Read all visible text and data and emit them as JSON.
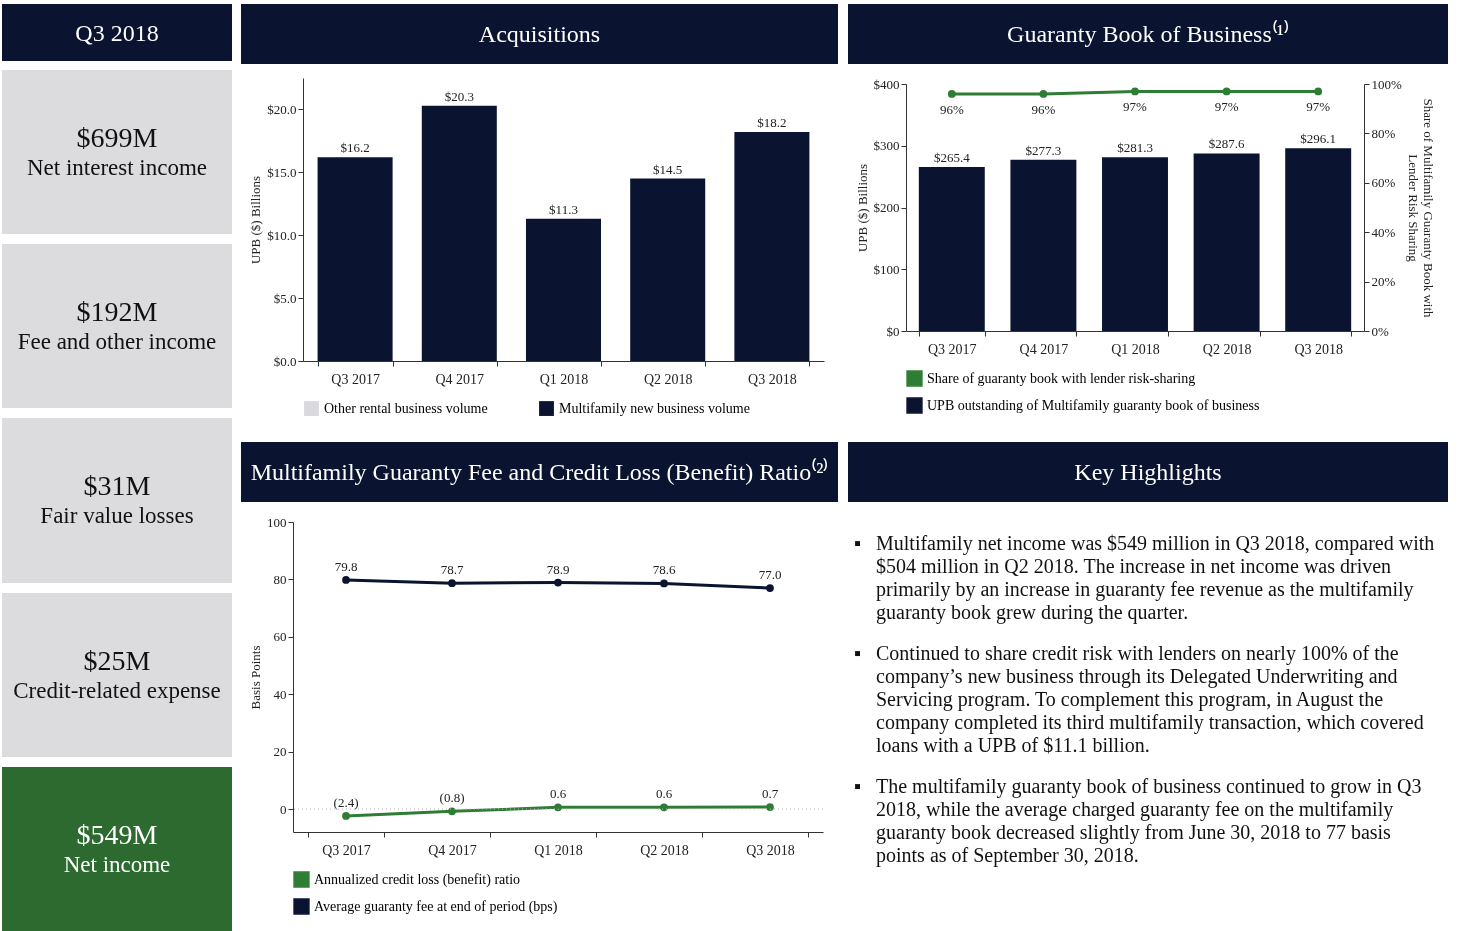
{
  "chart_data": [
    {
      "type": "other",
      "title": "Q3 2018",
      "annotations": [
        "$699M",
        "Net interest income",
        "$192M",
        "Fee and other income",
        "$31M",
        "Fair value losses",
        "$25M",
        "Credit-related expense",
        "$549M",
        "Net income"
      ],
      "colors": [
        "#dcdcdf",
        "#dcdcdf",
        "#dcdcdf",
        "#dcdcdf",
        "#2d6a2f"
      ]
    },
    {
      "type": "bar",
      "title": "Acquisitions",
      "ylabel": "UPB ($) Billions",
      "categories": [
        "Q3 2017",
        "Q4 2017",
        "Q1 2018",
        "Q2 2018",
        "Q3 2018"
      ],
      "legend": "bottom",
      "ylim": [
        0,
        22.5
      ],
      "yticks": [
        {
          "value": 0,
          "label": "$0.0"
        },
        {
          "value": 5,
          "label": "$5.0"
        },
        {
          "value": 10,
          "label": "$10.0"
        },
        {
          "value": 15,
          "label": "$15.0"
        },
        {
          "value": 20,
          "label": "$20.0"
        }
      ],
      "series": [
        {
          "name": "Other rental business volume",
          "color": "#d9d9de",
          "values": [
            null,
            null,
            null,
            null,
            null
          ]
        },
        {
          "name": "Multifamily new business volume",
          "color": "#0a1430",
          "values": [
            16.2,
            20.3,
            11.3,
            14.5,
            18.2
          ],
          "value_labels": [
            "$16.2",
            "$20.3",
            "$11.3",
            "$14.5",
            "$18.2"
          ]
        }
      ]
    },
    {
      "type": "bar",
      "title": "Guaranty Book of Business⁽¹⁾",
      "ylabel": "UPB ($) Billions",
      "y2label": "Share of Multifamily Guaranty Book with Lender Risk Sharing",
      "categories": [
        "Q3 2017",
        "Q4 2017",
        "Q1 2018",
        "Q2 2018",
        "Q3 2018"
      ],
      "legend": "bottom left",
      "marker": "circle",
      "ylim": [
        0,
        400
      ],
      "yticks": [
        {
          "value": 0,
          "label": "$0"
        },
        {
          "value": 100,
          "label": "$100"
        },
        {
          "value": 200,
          "label": "$200"
        },
        {
          "value": 300,
          "label": "$300"
        },
        {
          "value": 400,
          "label": "$400"
        }
      ],
      "y2lim": [
        0,
        100
      ],
      "y2ticks": [
        {
          "value": 0,
          "label": "0%"
        },
        {
          "value": 20,
          "label": "20%"
        },
        {
          "value": 40,
          "label": "40%"
        },
        {
          "value": 60,
          "label": "60%"
        },
        {
          "value": 80,
          "label": "80%"
        },
        {
          "value": 100,
          "label": "100%"
        }
      ],
      "series": [
        {
          "name": "Share of guaranty book with lender risk-sharing",
          "type": "line",
          "axis": "y2",
          "color": "#2f7d34",
          "values": [
            96,
            96,
            97,
            97,
            97
          ],
          "value_labels": [
            "96%",
            "96%",
            "97%",
            "97%",
            "97%"
          ]
        },
        {
          "name": "UPB outstanding of Multifamily guaranty book of business",
          "color": "#0a1430",
          "values": [
            265.4,
            277.3,
            281.3,
            287.6,
            296.1
          ],
          "value_labels": [
            "$265.4",
            "$277.3",
            "$281.3",
            "$287.6",
            "$296.1"
          ]
        }
      ]
    },
    {
      "type": "line",
      "title": "Multifamily Guaranty Fee and Credit Loss (Benefit) Ratio⁽²⁾",
      "ylabel": "Basis Points",
      "categories": [
        "Q3 2017",
        "Q4 2017",
        "Q1 2018",
        "Q2 2018",
        "Q3 2018"
      ],
      "legend": "bottom left",
      "marker": "circle",
      "ylim": [
        -8,
        100
      ],
      "yticks": [
        0,
        20,
        40,
        60,
        80,
        100
      ],
      "ref_lines": [
        {
          "axis": "y",
          "value": 0,
          "color": "#bbbbbb",
          "line_style": "dotted"
        }
      ],
      "series": [
        {
          "name": "Annualized credit loss (benefit) ratio",
          "color": "#2f7d34",
          "values": [
            -2.4,
            -0.8,
            0.6,
            0.6,
            0.7
          ],
          "value_labels": [
            "(2.4)",
            "(0.8)",
            "0.6",
            "0.6",
            "0.7"
          ]
        },
        {
          "name": "Average guaranty fee at end of period (bps)",
          "color": "#0a1430",
          "values": [
            79.8,
            78.7,
            78.9,
            78.6,
            77.0
          ],
          "value_labels": [
            "79.8",
            "78.7",
            "78.9",
            "78.6",
            "77.0"
          ]
        }
      ]
    },
    {
      "type": "other",
      "title": "Key Highlights",
      "annotations": [
        "▪ Multifamily net income was $549 million in Q3 2018, compared with $504 million in Q2 2018. The increase in net income was driven primarily by an increase in guaranty fee revenue as the multifamily guaranty book grew during the quarter.",
        "▪ Continued to share credit risk with lenders on nearly 100% of the company’s new business through its Delegated Underwriting and Servicing program. To complement this program, in August the company completed its third multifamily transaction, which covered loans with a UPB of $11.1 billion.",
        "▪ The multifamily guaranty book of business continued to grow in Q3 2018, while the average charged guaranty fee on the multifamily guaranty book decreased slightly from June 30, 2018 to 77 basis points as of September 30, 2018."
      ]
    }
  ]
}
